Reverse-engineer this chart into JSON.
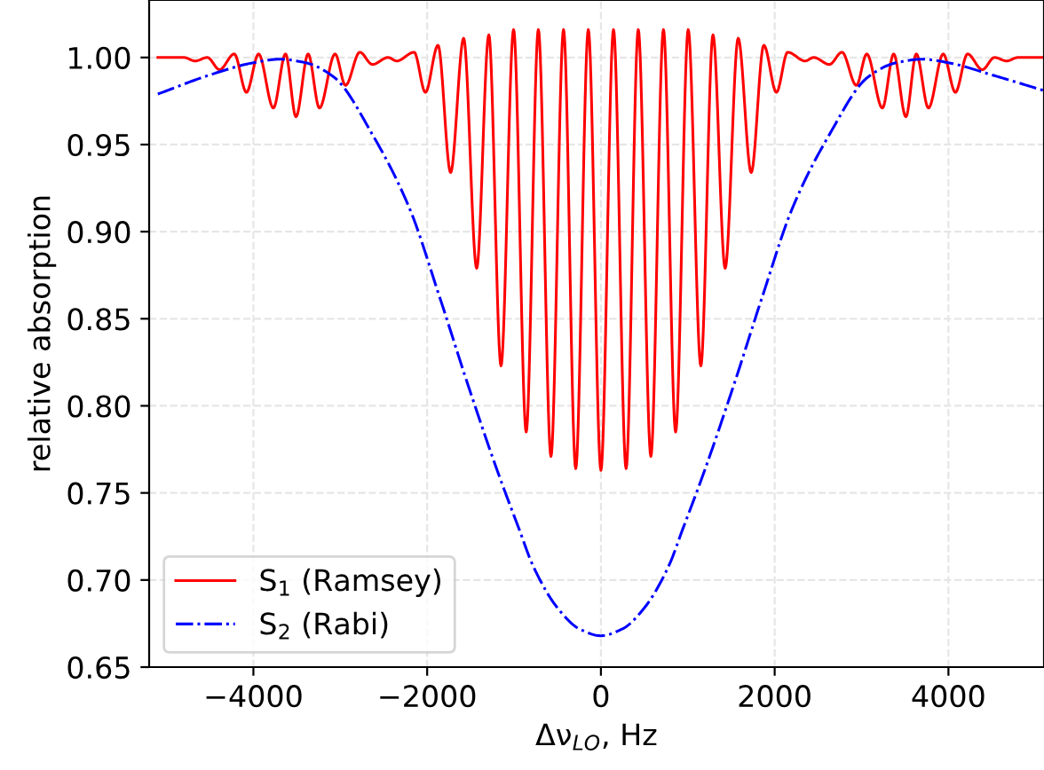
{
  "chart_data": {
    "type": "line",
    "xlabel": "Δν$_{LO}$, Hz",
    "ylabel": "relative absorption",
    "series": [
      {
        "name": "S$_{1}$ (Ramsey)",
        "color": "#ff0000",
        "line_style": "solid",
        "x": [
          -5100,
          -4800,
          -4670,
          -4530,
          -4390,
          -4220,
          -4080,
          -3940,
          -3770,
          -3630,
          -3510,
          -3370,
          -3240,
          -3060,
          -2940,
          -2775,
          -2630,
          -2450,
          -2350,
          -2150,
          -2020,
          -1875,
          -1730,
          -1580,
          -1430,
          -1290,
          -1150,
          -1005,
          -860,
          -720,
          -575,
          -430,
          -290,
          -145,
          0,
          145,
          290,
          430,
          575,
          720,
          860,
          1005,
          1150,
          1290,
          1430,
          1580,
          1730,
          1875,
          2020,
          2150,
          2350,
          2450,
          2630,
          2775,
          2940,
          3060,
          3240,
          3370,
          3510,
          3630,
          3770,
          3940,
          4080,
          4220,
          4390,
          4530,
          4670,
          4800,
          5100
        ],
        "values": [
          1.0,
          1.0,
          0.998,
          1.0,
          0.993,
          1.002,
          0.98,
          1.002,
          0.971,
          1.002,
          0.966,
          1.002,
          0.971,
          1.002,
          0.984,
          1.003,
          0.996,
          1.0,
          0.998,
          1.003,
          0.98,
          1.007,
          0.934,
          1.011,
          0.879,
          1.013,
          0.823,
          1.016,
          0.785,
          1.016,
          0.771,
          1.016,
          0.764,
          1.016,
          0.763,
          1.016,
          0.764,
          1.016,
          0.771,
          1.016,
          0.785,
          1.016,
          0.823,
          1.013,
          0.879,
          1.011,
          0.934,
          1.007,
          0.98,
          1.003,
          0.998,
          1.0,
          0.996,
          1.003,
          0.984,
          1.002,
          0.971,
          1.002,
          0.966,
          1.002,
          0.971,
          1.002,
          0.98,
          1.002,
          0.993,
          1.0,
          0.998,
          1.0,
          1.0
        ]
      },
      {
        "name": "S$_{2}$ (Rabi)",
        "color": "#0000ff",
        "line_style": "dashdot",
        "x": [
          -5100,
          -4500,
          -4000,
          -3700,
          -3400,
          -3080,
          -2610,
          -2200,
          -1860,
          -1530,
          -1180,
          -940,
          -780,
          -500,
          -250,
          0,
          250,
          500,
          780,
          940,
          1180,
          1530,
          1860,
          2200,
          2610,
          3080,
          3400,
          3700,
          4000,
          4500,
          5100
        ],
        "values": [
          0.979,
          0.99,
          0.997,
          0.999,
          0.997,
          0.989,
          0.954,
          0.913,
          0.863,
          0.812,
          0.761,
          0.729,
          0.708,
          0.684,
          0.672,
          0.668,
          0.672,
          0.684,
          0.708,
          0.729,
          0.761,
          0.812,
          0.863,
          0.913,
          0.954,
          0.989,
          0.997,
          0.999,
          0.997,
          0.99,
          0.981
        ]
      }
    ],
    "xlim": [
      -5200,
      5100
    ],
    "ylim": [
      0.65,
      1.033
    ],
    "xticks": [
      -4000,
      -2000,
      0,
      2000,
      4000
    ],
    "yticks": [
      {
        "value": 0.65,
        "label": "0.65"
      },
      {
        "value": 0.7,
        "label": "0.70"
      },
      {
        "value": 0.75,
        "label": "0.75"
      },
      {
        "value": 0.8,
        "label": "0.80"
      },
      {
        "value": 0.85,
        "label": "0.85"
      },
      {
        "value": 0.9,
        "label": "0.90"
      },
      {
        "value": 0.95,
        "label": "0.95"
      },
      {
        "value": 1.0,
        "label": "1.00"
      }
    ],
    "grid": true,
    "legend": "bottom left",
    "marker": "none"
  }
}
